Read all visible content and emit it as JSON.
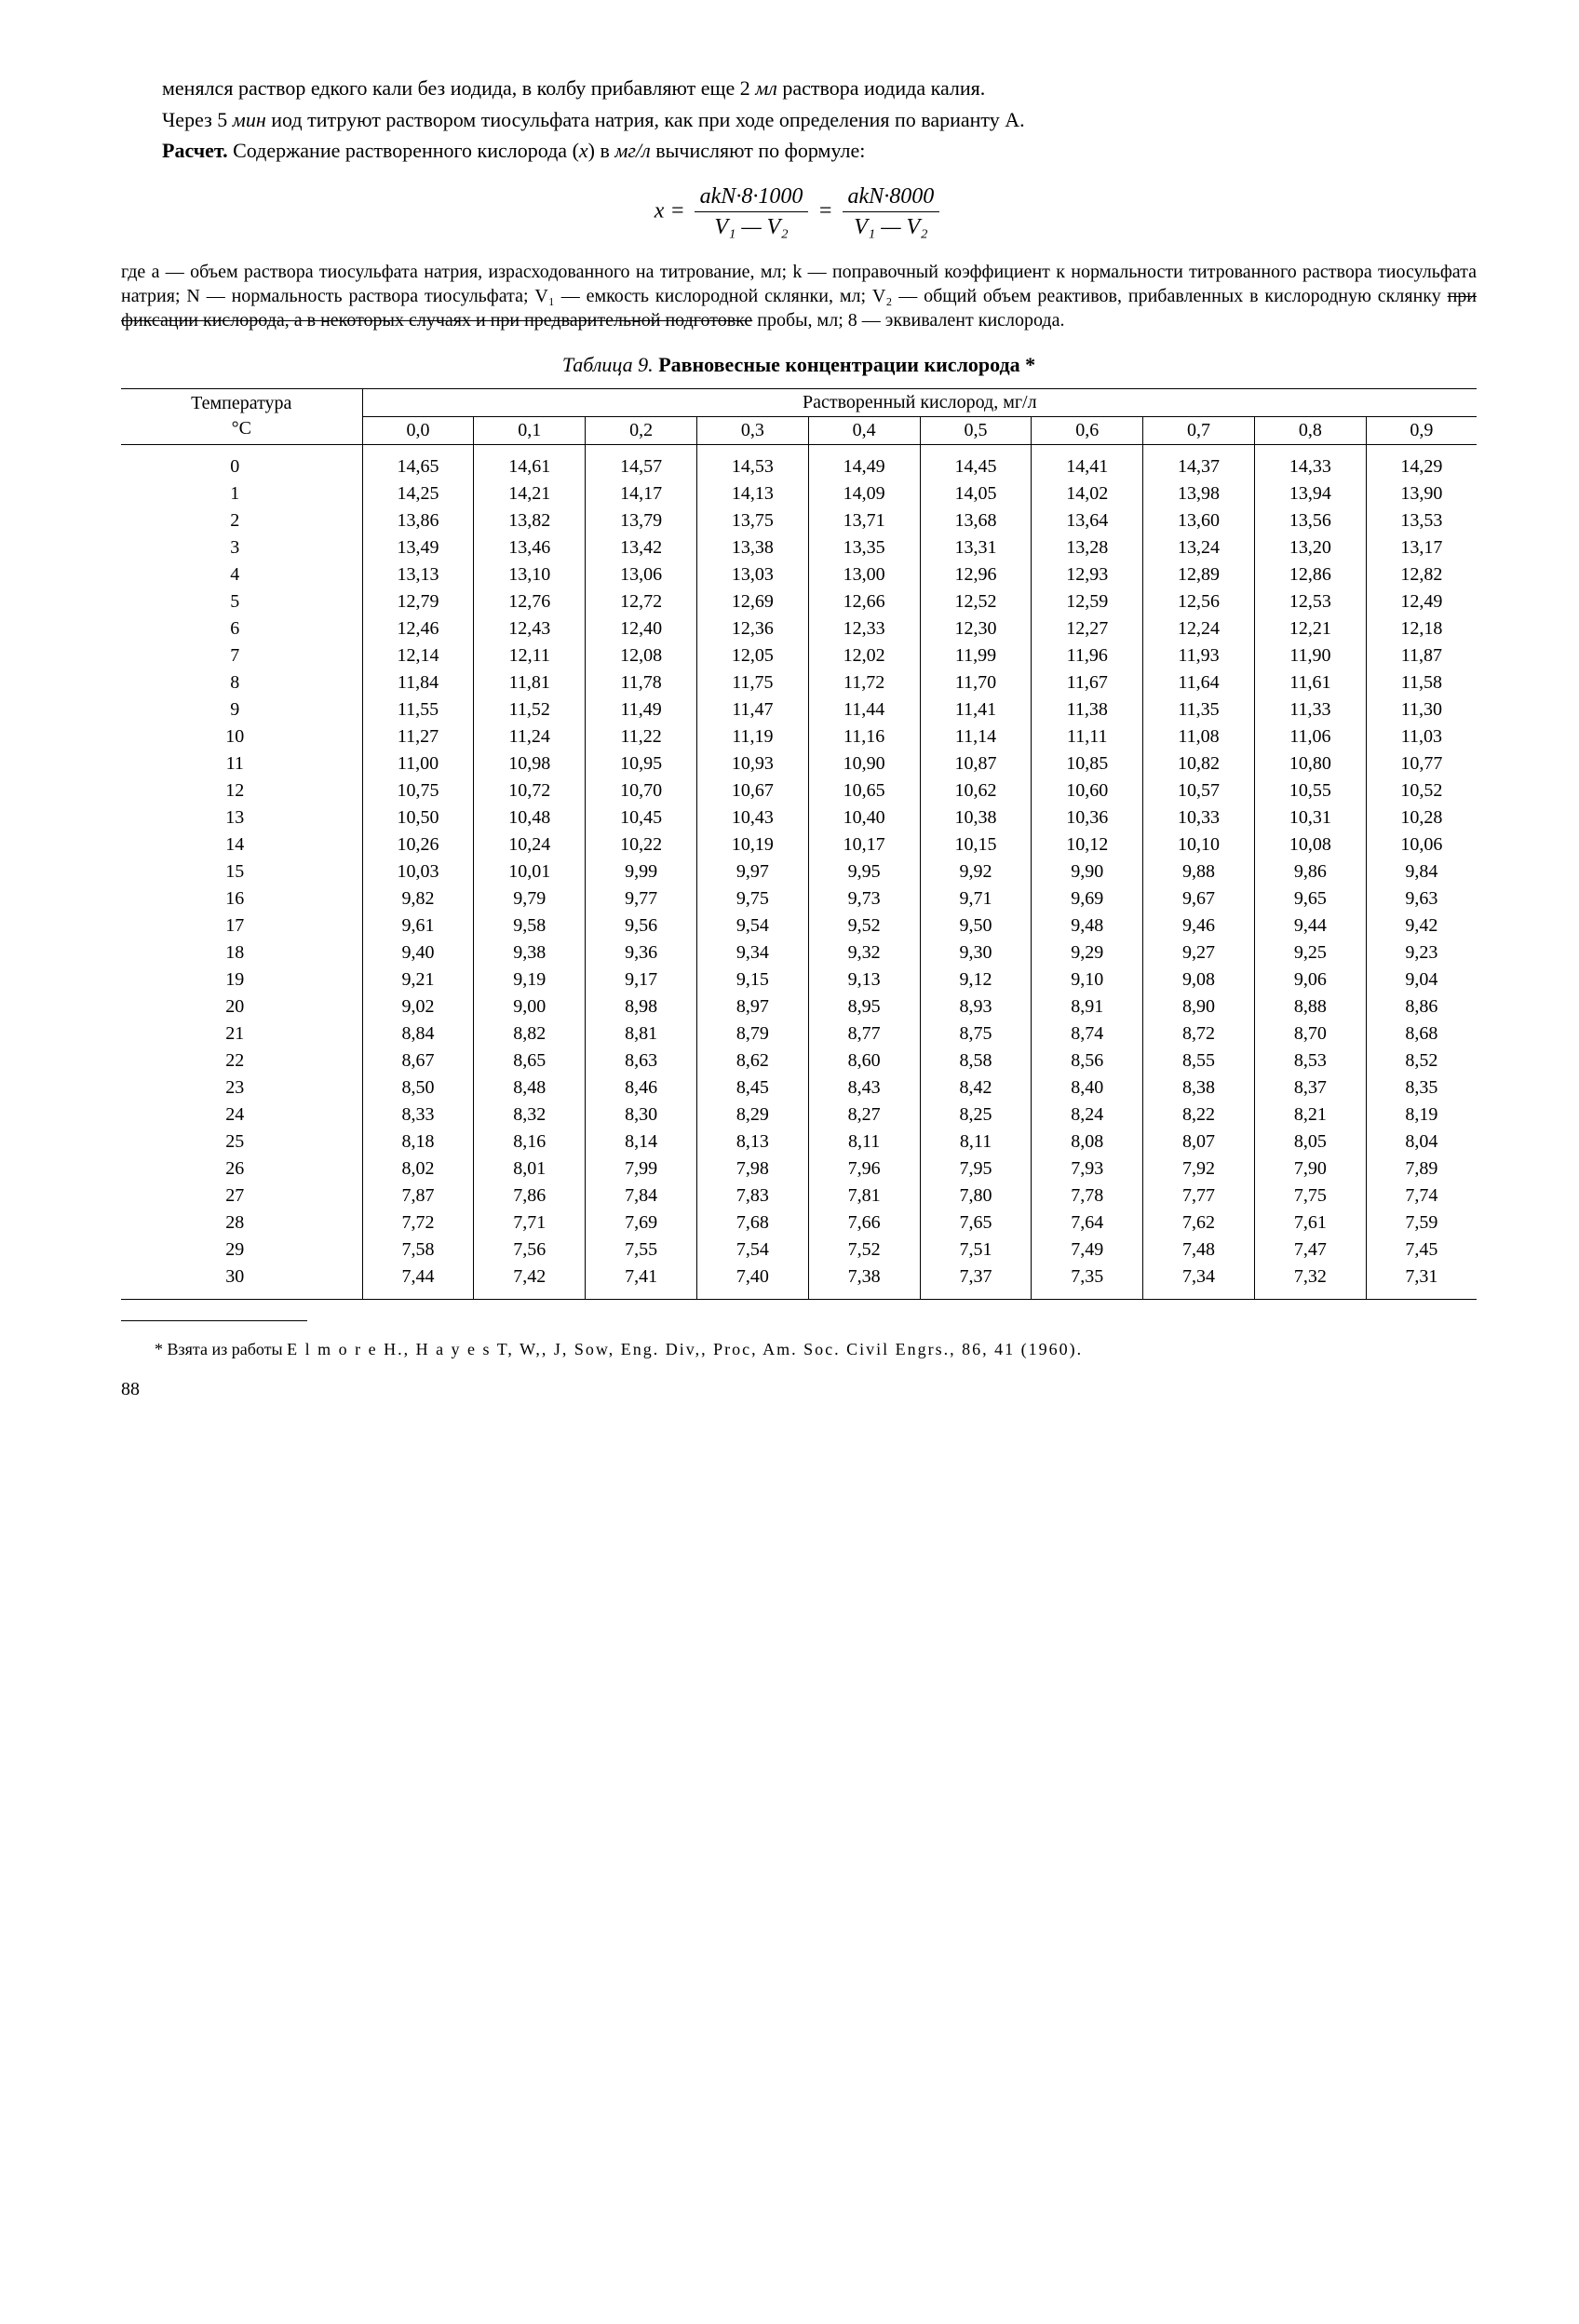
{
  "p1": "менялся раствор едкого кали без иодида, в колбу прибавляют еще 2 ",
  "p1_it": "мл",
  "p1_end": " раствора иодида калия.",
  "p2a": "Через 5 ",
  "p2_it": "мин",
  "p2b": " иод титруют раствором тиосульфата натрия, как при ходе определения по варианту А.",
  "p3_bold": "Расчет.",
  "p3a": " Содержание растворенного кислорода (",
  "p3_x": "x",
  "p3b": ") в ",
  "p3_unit": "мг/л",
  "p3c": " вычисляют по формуле:",
  "formula": {
    "lhs": "x =",
    "num1": "akN·8·1000",
    "den1": "V₁ — V₂",
    "eq": " = ",
    "num2": "akN·8000",
    "den2": "V₁ — V₂"
  },
  "where": "где a — объем раствора тиосульфата натрия, израсходованного на титрование, мл; k — поправочный коэффициент к нормальности титрованного раствора тиосульфата натрия; N — нормальность раствора тиосульфата; V₁ — емкость кислородной склянки, мл; V₂ — общий объем реактивов, прибавленных в кислородную склянку ",
  "where_strike": "при фиксации кислорода, а в некоторых случаях и при предварительной подготовке",
  "where_end": " пробы, мл; 8 — эквивалент кислорода.",
  "table_title_it": "Таблица 9.",
  "table_title_b": " Равновесные концентрации кислорода *",
  "hdr_span": "Растворенный кислород, мг/л",
  "hdr_temp1": "Температура",
  "hdr_temp2": "°C",
  "col_headers": [
    "0,0",
    "0,1",
    "0,2",
    "0,3",
    "0,4",
    "0,5",
    "0,6",
    "0,7",
    "0,8",
    "0,9"
  ],
  "rows": [
    [
      "0",
      "14,65",
      "14,61",
      "14,57",
      "14,53",
      "14,49",
      "14,45",
      "14,41",
      "14,37",
      "14,33",
      "14,29"
    ],
    [
      "1",
      "14,25",
      "14,21",
      "14,17",
      "14,13",
      "14,09",
      "14,05",
      "14,02",
      "13,98",
      "13,94",
      "13,90"
    ],
    [
      "2",
      "13,86",
      "13,82",
      "13,79",
      "13,75",
      "13,71",
      "13,68",
      "13,64",
      "13,60",
      "13,56",
      "13,53"
    ],
    [
      "3",
      "13,49",
      "13,46",
      "13,42",
      "13,38",
      "13,35",
      "13,31",
      "13,28",
      "13,24",
      "13,20",
      "13,17"
    ],
    [
      "4",
      "13,13",
      "13,10",
      "13,06",
      "13,03",
      "13,00",
      "12,96",
      "12,93",
      "12,89",
      "12,86",
      "12,82"
    ],
    [
      "5",
      "12,79",
      "12,76",
      "12,72",
      "12,69",
      "12,66",
      "12,52",
      "12,59",
      "12,56",
      "12,53",
      "12,49"
    ],
    [
      "6",
      "12,46",
      "12,43",
      "12,40",
      "12,36",
      "12,33",
      "12,30",
      "12,27",
      "12,24",
      "12,21",
      "12,18"
    ],
    [
      "7",
      "12,14",
      "12,11",
      "12,08",
      "12,05",
      "12,02",
      "11,99",
      "11,96",
      "11,93",
      "11,90",
      "11,87"
    ],
    [
      "8",
      "11,84",
      "11,81",
      "11,78",
      "11,75",
      "11,72",
      "11,70",
      "11,67",
      "11,64",
      "11,61",
      "11,58"
    ],
    [
      "9",
      "11,55",
      "11,52",
      "11,49",
      "11,47",
      "11,44",
      "11,41",
      "11,38",
      "11,35",
      "11,33",
      "11,30"
    ],
    [
      "10",
      "11,27",
      "11,24",
      "11,22",
      "11,19",
      "11,16",
      "11,14",
      "11,11",
      "11,08",
      "11,06",
      "11,03"
    ],
    [
      "11",
      "11,00",
      "10,98",
      "10,95",
      "10,93",
      "10,90",
      "10,87",
      "10,85",
      "10,82",
      "10,80",
      "10,77"
    ],
    [
      "12",
      "10,75",
      "10,72",
      "10,70",
      "10,67",
      "10,65",
      "10,62",
      "10,60",
      "10,57",
      "10,55",
      "10,52"
    ],
    [
      "13",
      "10,50",
      "10,48",
      "10,45",
      "10,43",
      "10,40",
      "10,38",
      "10,36",
      "10,33",
      "10,31",
      "10,28"
    ],
    [
      "14",
      "10,26",
      "10,24",
      "10,22",
      "10,19",
      "10,17",
      "10,15",
      "10,12",
      "10,10",
      "10,08",
      "10,06"
    ],
    [
      "15",
      "10,03",
      "10,01",
      "9,99",
      "9,97",
      "9,95",
      "9,92",
      "9,90",
      "9,88",
      "9,86",
      "9,84"
    ],
    [
      "16",
      "9,82",
      "9,79",
      "9,77",
      "9,75",
      "9,73",
      "9,71",
      "9,69",
      "9,67",
      "9,65",
      "9,63"
    ],
    [
      "17",
      "9,61",
      "9,58",
      "9,56",
      "9,54",
      "9,52",
      "9,50",
      "9,48",
      "9,46",
      "9,44",
      "9,42"
    ],
    [
      "18",
      "9,40",
      "9,38",
      "9,36",
      "9,34",
      "9,32",
      "9,30",
      "9,29",
      "9,27",
      "9,25",
      "9,23"
    ],
    [
      "19",
      "9,21",
      "9,19",
      "9,17",
      "9,15",
      "9,13",
      "9,12",
      "9,10",
      "9,08",
      "9,06",
      "9,04"
    ],
    [
      "20",
      "9,02",
      "9,00",
      "8,98",
      "8,97",
      "8,95",
      "8,93",
      "8,91",
      "8,90",
      "8,88",
      "8,86"
    ],
    [
      "21",
      "8,84",
      "8,82",
      "8,81",
      "8,79",
      "8,77",
      "8,75",
      "8,74",
      "8,72",
      "8,70",
      "8,68"
    ],
    [
      "22",
      "8,67",
      "8,65",
      "8,63",
      "8,62",
      "8,60",
      "8,58",
      "8,56",
      "8,55",
      "8,53",
      "8,52"
    ],
    [
      "23",
      "8,50",
      "8,48",
      "8,46",
      "8,45",
      "8,43",
      "8,42",
      "8,40",
      "8,38",
      "8,37",
      "8,35"
    ],
    [
      "24",
      "8,33",
      "8,32",
      "8,30",
      "8,29",
      "8,27",
      "8,25",
      "8,24",
      "8,22",
      "8,21",
      "8,19"
    ],
    [
      "25",
      "8,18",
      "8,16",
      "8,14",
      "8,13",
      "8,11",
      "8,11",
      "8,08",
      "8,07",
      "8,05",
      "8,04"
    ],
    [
      "26",
      "8,02",
      "8,01",
      "7,99",
      "7,98",
      "7,96",
      "7,95",
      "7,93",
      "7,92",
      "7,90",
      "7,89"
    ],
    [
      "27",
      "7,87",
      "7,86",
      "7,84",
      "7,83",
      "7,81",
      "7,80",
      "7,78",
      "7,77",
      "7,75",
      "7,74"
    ],
    [
      "28",
      "7,72",
      "7,71",
      "7,69",
      "7,68",
      "7,66",
      "7,65",
      "7,64",
      "7,62",
      "7,61",
      "7,59"
    ],
    [
      "29",
      "7,58",
      "7,56",
      "7,55",
      "7,54",
      "7,52",
      "7,51",
      "7,49",
      "7,48",
      "7,47",
      "7,45"
    ],
    [
      "30",
      "7,44",
      "7,42",
      "7,41",
      "7,40",
      "7,38",
      "7,37",
      "7,35",
      "7,34",
      "7,32",
      "7,31"
    ]
  ],
  "footnote_a": "* Взята из работы ",
  "footnote_names": "E l m o r e  H.,  H a y e s  T, W,, J, Sow, Eng. Div,, Proc, Am. Soc. Civil Engrs., 86, 41 (1960).",
  "pagenum": "88"
}
